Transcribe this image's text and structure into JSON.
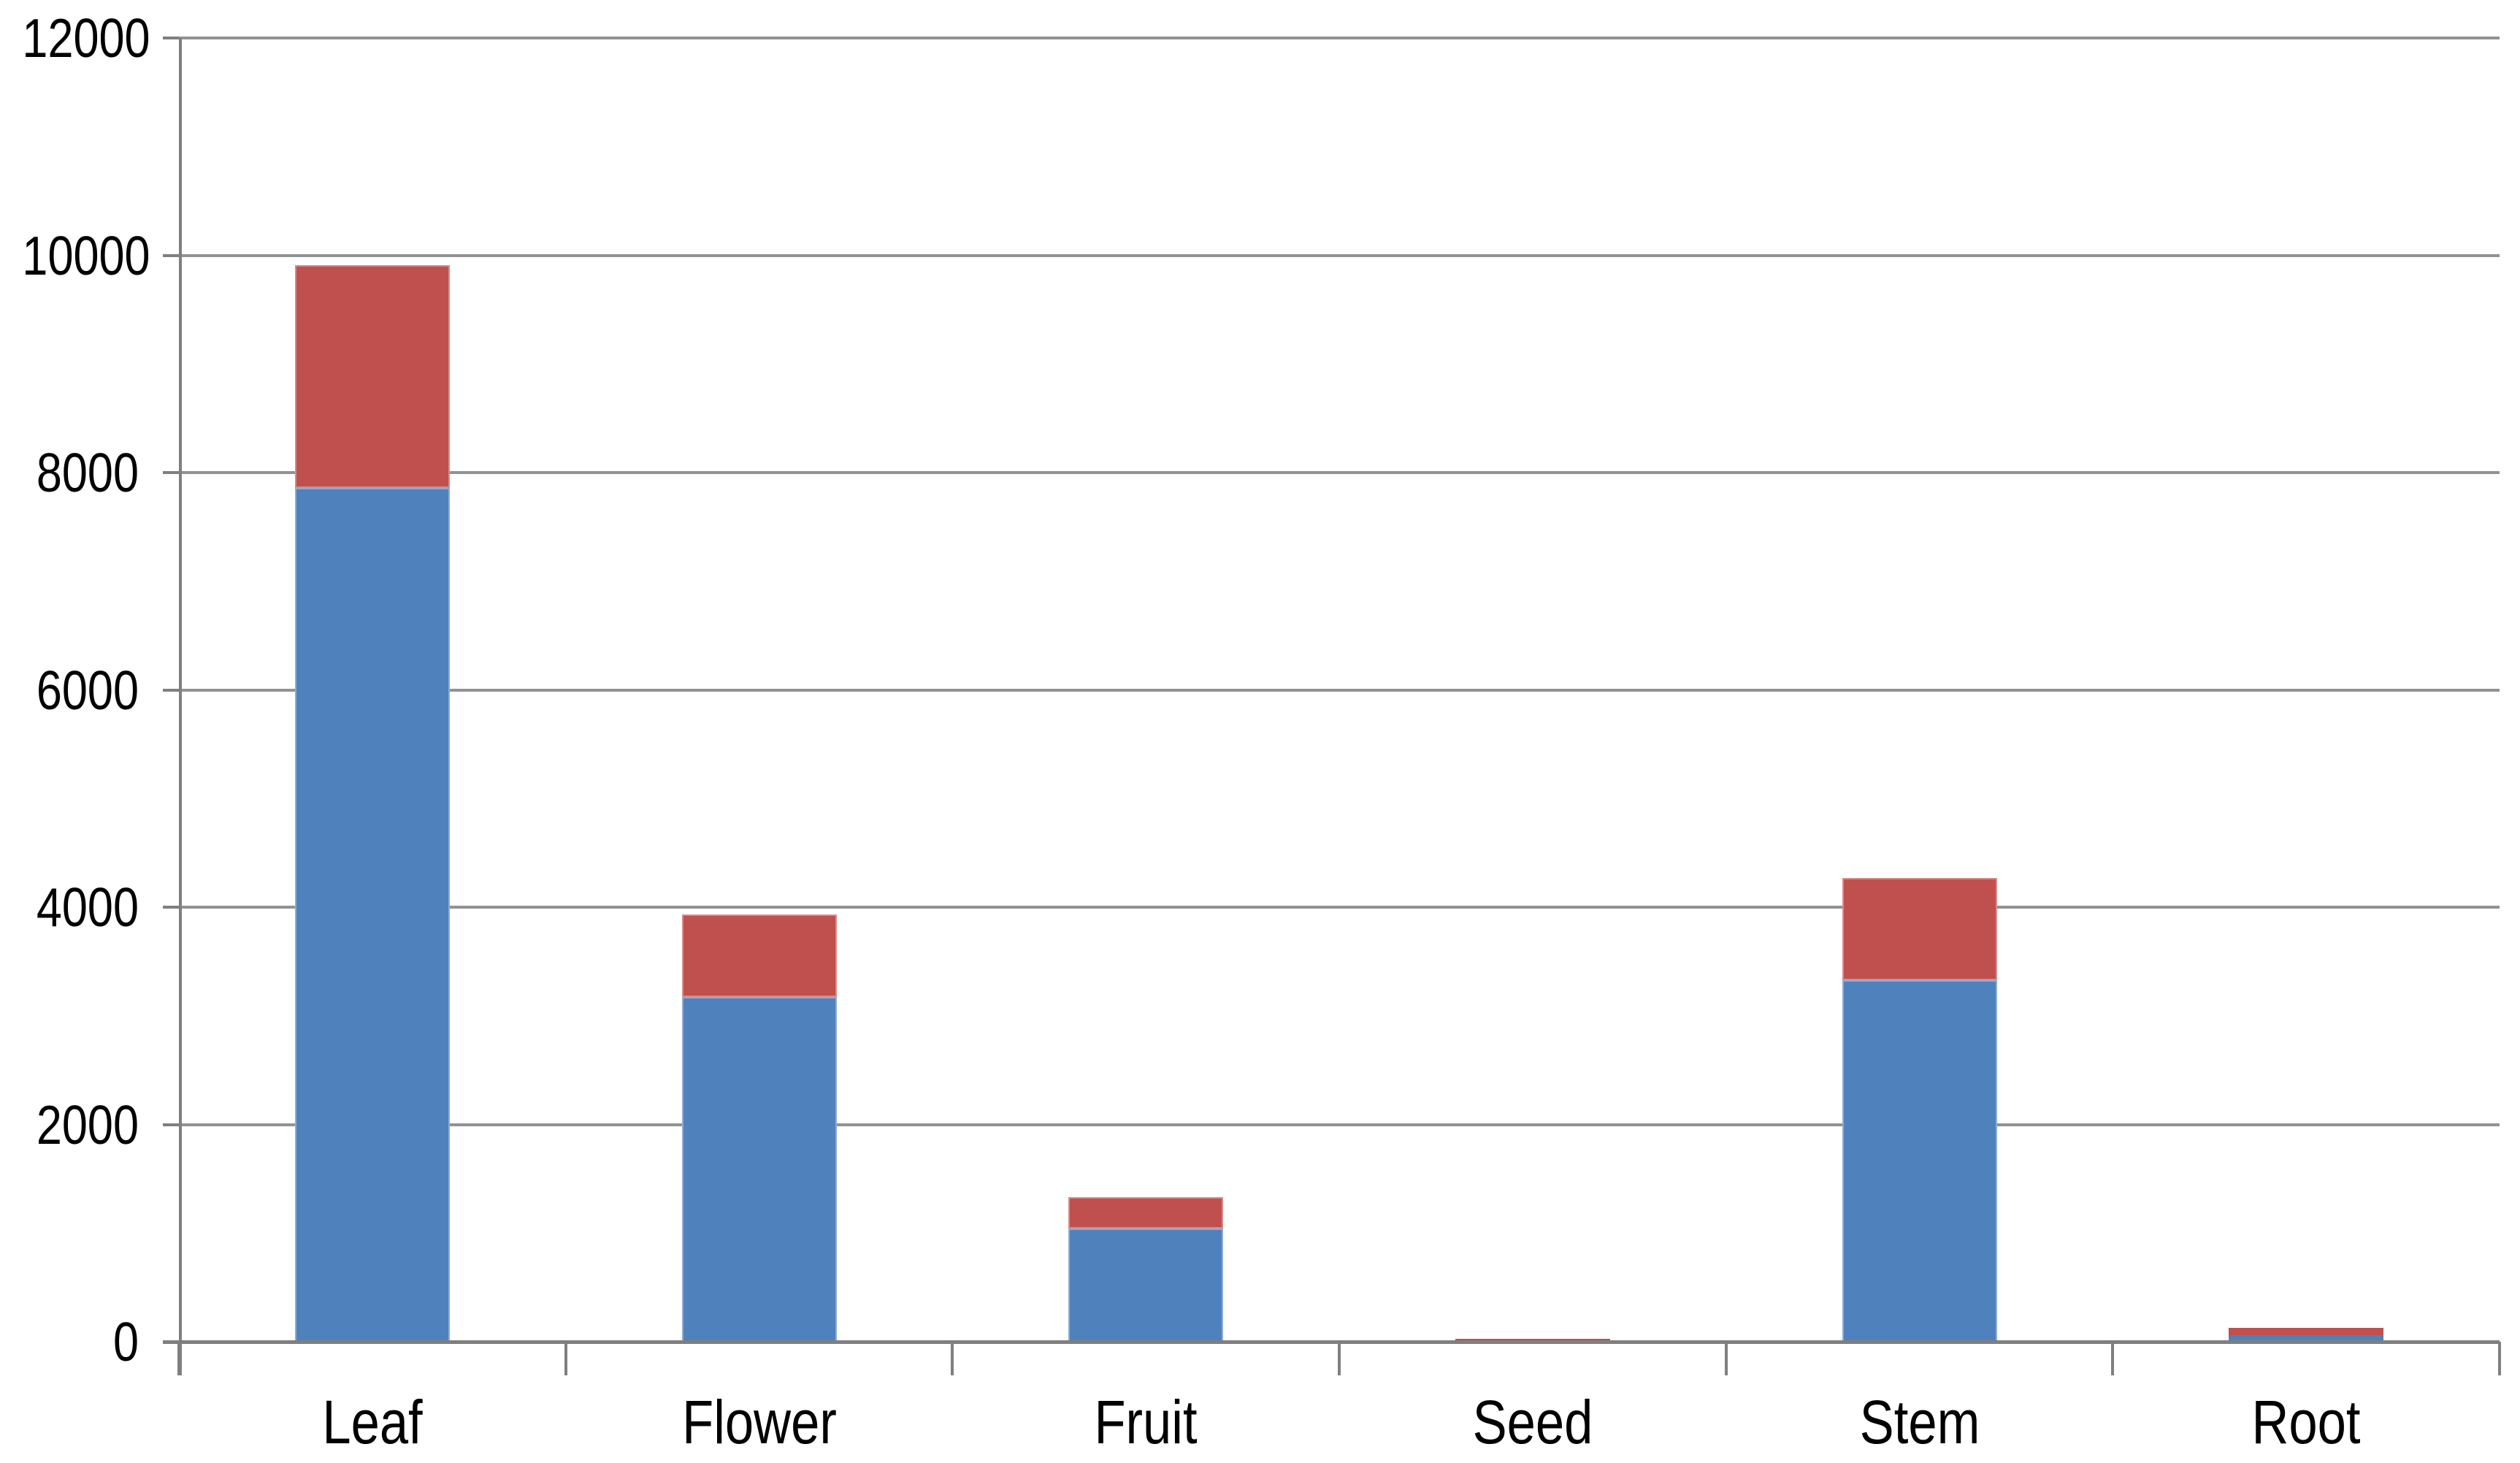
{
  "chart_data": {
    "type": "bar",
    "stacked": true,
    "title": "",
    "xlabel": "",
    "ylabel": "",
    "categories": [
      "Leaf",
      "Flower",
      "Fruit",
      "Seed",
      "Stem",
      "Root"
    ],
    "series": [
      {
        "name": "blue",
        "color": "#4F81BD",
        "values": [
          7860,
          3170,
          1040,
          10,
          3330,
          60
        ]
      },
      {
        "name": "red",
        "color": "#C0504D",
        "values": [
          2050,
          760,
          290,
          20,
          940,
          70
        ]
      }
    ],
    "totals": [
      9910,
      3930,
      1330,
      30,
      4270,
      130
    ],
    "ylim": [
      0,
      12000
    ],
    "ytick_step": 2000,
    "yticks": [
      "0",
      "2000",
      "4000",
      "6000",
      "8000",
      "10000",
      "12000"
    ],
    "grid": "horizontal-major",
    "legend": "none",
    "colors": {
      "gridline": "#929292",
      "axis": "#7f7f7f",
      "background": "#ffffff",
      "tick_label": "#000000"
    }
  }
}
